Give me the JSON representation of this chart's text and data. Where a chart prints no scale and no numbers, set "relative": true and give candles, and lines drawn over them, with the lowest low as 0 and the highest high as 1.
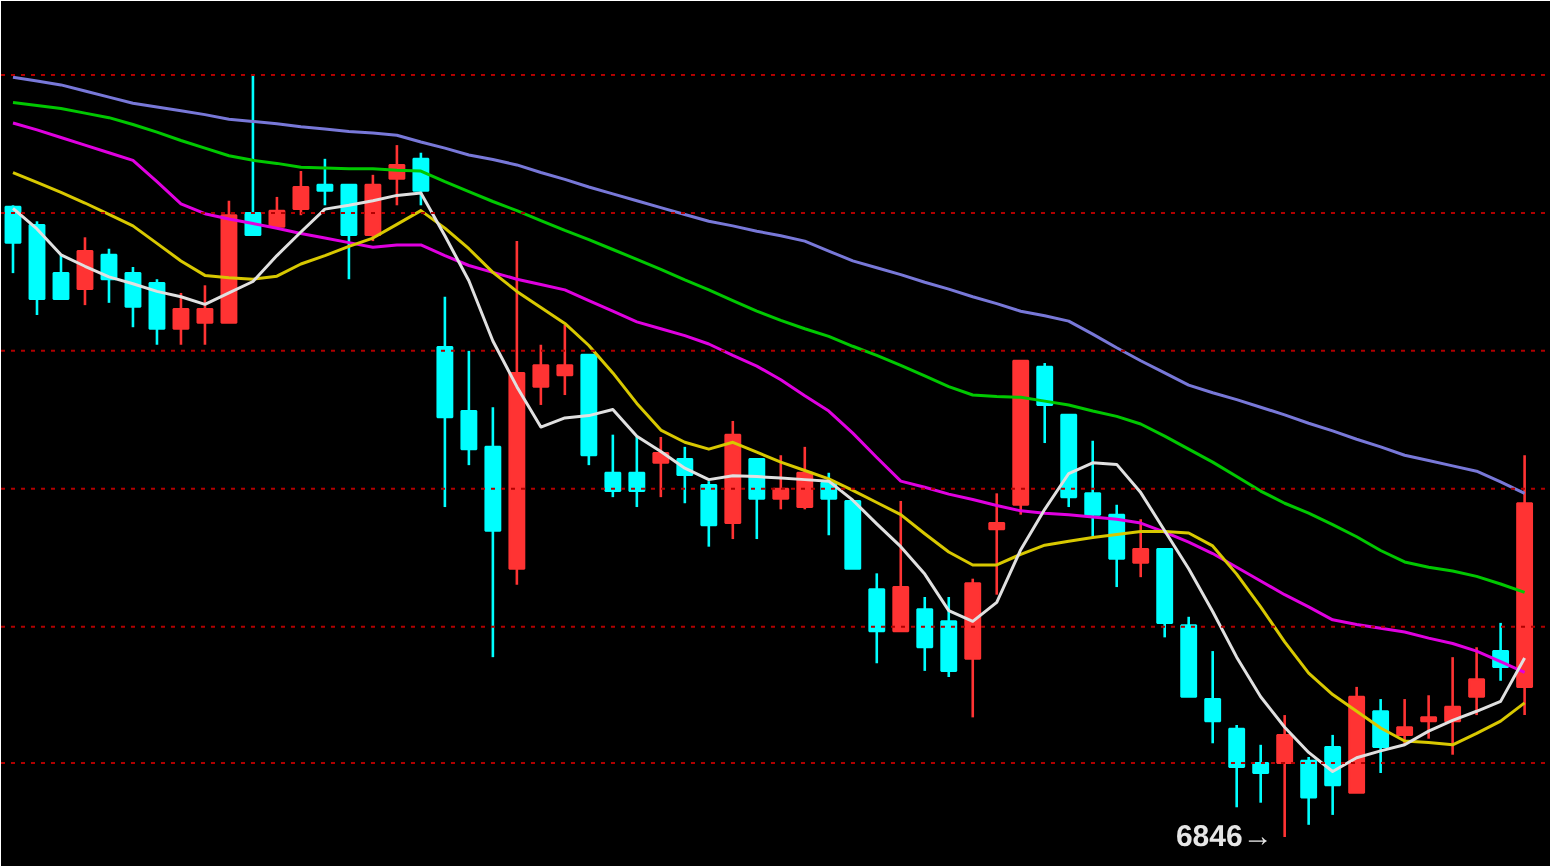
{
  "chart_data": {
    "type": "candlestick",
    "relative": true,
    "tick_labels": false,
    "categories": [
      null,
      null,
      null,
      null,
      null,
      null,
      null,
      null,
      null,
      null,
      null,
      null,
      null,
      null,
      null,
      null,
      null,
      null,
      null,
      null,
      null,
      null,
      null,
      null,
      null,
      null,
      null,
      null,
      null,
      null,
      null,
      null,
      null,
      null,
      null,
      null,
      null,
      null,
      null,
      null,
      null,
      null,
      null,
      null,
      null,
      null,
      null,
      null,
      null,
      null,
      null,
      null,
      null,
      null,
      null,
      null,
      null,
      null,
      null,
      null,
      null,
      null,
      null,
      null
    ],
    "ohlc": [
      [
        0.827,
        0.829,
        0.74,
        0.78
      ],
      [
        0.803,
        0.808,
        0.685,
        0.706
      ],
      [
        0.74,
        0.764,
        0.706,
        0.706
      ],
      [
        0.719,
        0.787,
        0.698,
        0.769
      ],
      [
        0.764,
        0.772,
        0.701,
        0.732
      ],
      [
        0.74,
        0.748,
        0.669,
        0.696
      ],
      [
        0.727,
        0.732,
        0.646,
        0.667
      ],
      [
        0.667,
        0.714,
        0.646,
        0.693
      ],
      [
        0.675,
        0.724,
        0.646,
        0.693
      ],
      [
        0.675,
        0.835,
        0.675,
        0.816
      ],
      [
        0.819,
        1.0,
        0.79,
        0.79
      ],
      [
        0.801,
        0.84,
        0.801,
        0.822
      ],
      [
        0.824,
        0.874,
        0.816,
        0.853
      ],
      [
        0.856,
        0.89,
        0.829,
        0.848
      ],
      [
        0.856,
        0.856,
        0.732,
        0.79
      ],
      [
        0.79,
        0.869,
        0.782,
        0.856
      ],
      [
        0.864,
        0.908,
        0.829,
        0.882
      ],
      [
        0.89,
        0.898,
        0.829,
        0.848
      ],
      [
        0.643,
        0.709,
        0.433,
        0.551
      ],
      [
        0.559,
        0.638,
        0.488,
        0.509
      ],
      [
        0.512,
        0.564,
        0.236,
        0.402
      ],
      [
        0.352,
        0.782,
        0.331,
        0.609
      ],
      [
        0.591,
        0.646,
        0.567,
        0.619
      ],
      [
        0.606,
        0.672,
        0.58,
        0.619
      ],
      [
        0.633,
        0.633,
        0.488,
        0.501
      ],
      [
        0.478,
        0.528,
        0.446,
        0.454
      ],
      [
        0.478,
        0.525,
        0.433,
        0.454
      ],
      [
        0.491,
        0.525,
        0.446,
        0.504
      ],
      [
        0.496,
        0.512,
        0.438,
        0.475
      ],
      [
        0.462,
        0.467,
        0.381,
        0.409
      ],
      [
        0.412,
        0.546,
        0.391,
        0.528
      ],
      [
        0.496,
        0.496,
        0.391,
        0.444
      ],
      [
        0.444,
        0.501,
        0.43,
        0.457
      ],
      [
        0.433,
        0.512,
        0.43,
        0.478
      ],
      [
        0.465,
        0.478,
        0.396,
        0.444
      ],
      [
        0.441,
        0.441,
        0.352,
        0.352
      ],
      [
        0.325,
        0.346,
        0.228,
        0.27
      ],
      [
        0.27,
        0.441,
        0.27,
        0.328
      ],
      [
        0.299,
        0.315,
        0.218,
        0.249
      ],
      [
        0.283,
        0.315,
        0.21,
        0.218
      ],
      [
        0.234,
        0.339,
        0.157,
        0.333
      ],
      [
        0.404,
        0.451,
        0.318,
        0.412
      ],
      [
        0.436,
        0.625,
        0.423,
        0.625
      ],
      [
        0.617,
        0.622,
        0.517,
        0.567
      ],
      [
        0.554,
        0.554,
        0.433,
        0.446
      ],
      [
        0.451,
        0.52,
        0.394,
        0.423
      ],
      [
        0.423,
        0.436,
        0.328,
        0.365
      ],
      [
        0.36,
        0.417,
        0.341,
        0.378
      ],
      [
        0.378,
        0.378,
        0.262,
        0.281
      ],
      [
        0.278,
        0.289,
        0.184,
        0.184
      ],
      [
        0.181,
        0.244,
        0.123,
        0.152
      ],
      [
        0.142,
        0.147,
        0.039,
        0.092
      ],
      [
        0.097,
        0.121,
        0.045,
        0.084
      ],
      [
        0.097,
        0.16,
        0.0,
        0.134
      ],
      [
        0.1,
        0.105,
        0.016,
        0.052
      ],
      [
        0.118,
        0.134,
        0.029,
        0.068
      ],
      [
        0.058,
        0.197,
        0.058,
        0.184
      ],
      [
        0.165,
        0.181,
        0.084,
        0.118
      ],
      [
        0.134,
        0.181,
        0.121,
        0.144
      ],
      [
        0.152,
        0.186,
        0.129,
        0.157
      ],
      [
        0.152,
        0.236,
        0.108,
        0.171
      ],
      [
        0.184,
        0.249,
        0.16,
        0.207
      ],
      [
        0.244,
        0.281,
        0.205,
        0.223
      ],
      [
        0.197,
        0.501,
        0.16,
        0.438
      ]
    ],
    "colors": [
      "#00ffff",
      "#00ffff",
      "#00ffff",
      "#ff3333",
      "#00ffff",
      "#00ffff",
      "#00ffff",
      "#ff3333",
      "#ff3333",
      "#ff3333",
      "#00ffff",
      "#ff3333",
      "#ff3333",
      "#00ffff",
      "#00ffff",
      "#ff3333",
      "#ff3333",
      "#00ffff",
      "#00ffff",
      "#00ffff",
      "#00ffff",
      "#ff3333",
      "#ff3333",
      "#ff3333",
      "#00ffff",
      "#00ffff",
      "#00ffff",
      "#ff3333",
      "#00ffff",
      "#00ffff",
      "#ff3333",
      "#00ffff",
      "#ff3333",
      "#ff3333",
      "#00ffff",
      "#00ffff",
      "#00ffff",
      "#ff3333",
      "#00ffff",
      "#00ffff",
      "#ff3333",
      "#ff3333",
      "#ff3333",
      "#00ffff",
      "#00ffff",
      "#00ffff",
      "#00ffff",
      "#ff3333",
      "#00ffff",
      "#00ffff",
      "#00ffff",
      "#00ffff",
      "#00ffff",
      "#ff3333",
      "#00ffff",
      "#00ffff",
      "#ff3333",
      "#00ffff",
      "#ff3333",
      "#ff3333",
      "#ff3333",
      "#ff3333",
      "#00ffff",
      "#ff3333"
    ],
    "series": [
      {
        "type": "line",
        "color": "#7878d8",
        "values": [
          0.997,
          0.992,
          0.987,
          0.979,
          0.971,
          0.963,
          0.958,
          0.953,
          0.948,
          0.942,
          0.939,
          0.936,
          0.932,
          0.929,
          0.926,
          0.924,
          0.921,
          0.912,
          0.904,
          0.895,
          0.889,
          0.882,
          0.872,
          0.863,
          0.853,
          0.844,
          0.835,
          0.826,
          0.817,
          0.808,
          0.802,
          0.795,
          0.789,
          0.782,
          0.769,
          0.756,
          0.747,
          0.738,
          0.728,
          0.719,
          0.709,
          0.7,
          0.69,
          0.684,
          0.677,
          0.66,
          0.642,
          0.625,
          0.609,
          0.593,
          0.583,
          0.574,
          0.564,
          0.554,
          0.543,
          0.533,
          0.522,
          0.512,
          0.501,
          0.494,
          0.487,
          0.48,
          0.466,
          0.451
        ]
      },
      {
        "type": "line",
        "color": "#00c800",
        "values": [
          0.964,
          0.96,
          0.956,
          0.95,
          0.944,
          0.935,
          0.925,
          0.914,
          0.904,
          0.894,
          0.888,
          0.884,
          0.879,
          0.878,
          0.877,
          0.877,
          0.875,
          0.874,
          0.86,
          0.847,
          0.834,
          0.822,
          0.809,
          0.796,
          0.784,
          0.771,
          0.758,
          0.745,
          0.731,
          0.718,
          0.704,
          0.69,
          0.678,
          0.667,
          0.657,
          0.644,
          0.632,
          0.619,
          0.605,
          0.591,
          0.58,
          0.578,
          0.577,
          0.572,
          0.567,
          0.559,
          0.552,
          0.542,
          0.526,
          0.509,
          0.492,
          0.473,
          0.454,
          0.438,
          0.425,
          0.41,
          0.394,
          0.376,
          0.361,
          0.354,
          0.349,
          0.342,
          0.332,
          0.321
        ]
      },
      {
        "type": "line",
        "color": "#e000e0",
        "values": [
          0.937,
          0.928,
          0.918,
          0.908,
          0.898,
          0.888,
          0.86,
          0.831,
          0.818,
          0.811,
          0.805,
          0.799,
          0.792,
          0.786,
          0.78,
          0.774,
          0.777,
          0.777,
          0.763,
          0.75,
          0.741,
          0.732,
          0.725,
          0.718,
          0.704,
          0.69,
          0.676,
          0.667,
          0.658,
          0.647,
          0.632,
          0.618,
          0.6,
          0.579,
          0.559,
          0.53,
          0.498,
          0.467,
          0.459,
          0.45,
          0.443,
          0.435,
          0.428,
          0.425,
          0.423,
          0.42,
          0.417,
          0.412,
          0.4,
          0.387,
          0.372,
          0.354,
          0.336,
          0.318,
          0.302,
          0.285,
          0.279,
          0.274,
          0.269,
          0.261,
          0.254,
          0.244,
          0.23,
          0.216
        ]
      },
      {
        "type": "line",
        "color": "#d8c800",
        "values": [
          0.872,
          0.859,
          0.846,
          0.832,
          0.817,
          0.802,
          0.779,
          0.756,
          0.737,
          0.734,
          0.732,
          0.736,
          0.752,
          0.763,
          0.775,
          0.786,
          0.804,
          0.822,
          0.799,
          0.772,
          0.741,
          0.716,
          0.695,
          0.674,
          0.645,
          0.609,
          0.569,
          0.534,
          0.518,
          0.509,
          0.518,
          0.505,
          0.492,
          0.481,
          0.47,
          0.455,
          0.439,
          0.423,
          0.398,
          0.374,
          0.357,
          0.357,
          0.371,
          0.383,
          0.388,
          0.393,
          0.397,
          0.401,
          0.401,
          0.399,
          0.382,
          0.345,
          0.302,
          0.256,
          0.215,
          0.187,
          0.165,
          0.143,
          0.126,
          0.124,
          0.121,
          0.136,
          0.152,
          0.176
        ]
      },
      {
        "type": "line",
        "color": "#e0e0e0",
        "values": [
          0.825,
          0.798,
          0.764,
          0.749,
          0.735,
          0.726,
          0.716,
          0.709,
          0.699,
          0.714,
          0.729,
          0.763,
          0.794,
          0.824,
          0.829,
          0.835,
          0.842,
          0.845,
          0.789,
          0.73,
          0.651,
          0.591,
          0.538,
          0.55,
          0.553,
          0.561,
          0.526,
          0.506,
          0.484,
          0.469,
          0.474,
          0.473,
          0.471,
          0.469,
          0.467,
          0.442,
          0.411,
          0.381,
          0.345,
          0.297,
          0.283,
          0.308,
          0.377,
          0.43,
          0.477,
          0.491,
          0.489,
          0.452,
          0.402,
          0.352,
          0.296,
          0.236,
          0.184,
          0.144,
          0.111,
          0.086,
          0.104,
          0.113,
          0.121,
          0.139,
          0.153,
          0.165,
          0.178,
          0.235
        ]
      }
    ],
    "ref_lines": [
      {
        "axis": "y",
        "value": 1.0,
        "color": "#b00000",
        "line_style": "dotted"
      },
      {
        "axis": "y",
        "value": 0.819,
        "color": "#b00000",
        "line_style": "dotted"
      },
      {
        "axis": "y",
        "value": 0.638,
        "color": "#b00000",
        "line_style": "dotted"
      },
      {
        "axis": "y",
        "value": 0.457,
        "color": "#b00000",
        "line_style": "dotted"
      },
      {
        "axis": "y",
        "value": 0.276,
        "color": "#b00000",
        "line_style": "dotted"
      },
      {
        "axis": "y",
        "value": 0.097,
        "color": "#b00000",
        "line_style": "dotted"
      }
    ],
    "annotations": [
      "6846→"
    ]
  }
}
